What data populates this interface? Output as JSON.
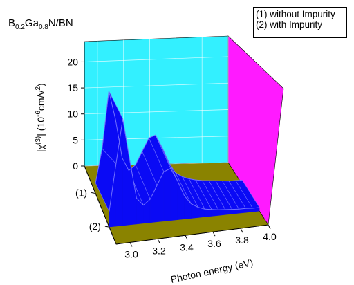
{
  "title": {
    "base": "B",
    "sub1": "0.2",
    "mid": "Ga",
    "sub2": "0.8",
    "tail": "N/BN"
  },
  "legend": {
    "entries": [
      "(1) without Impurity",
      "(2)  with Impurity"
    ]
  },
  "colors": {
    "back_wall": "#33f0ff",
    "side_wall": "#ff1aff",
    "floor": "#8a8300",
    "surface": "#0a0af5",
    "surface_edge": "#6f6fff"
  },
  "chart_data": {
    "type": "surface3d",
    "xlabel": "Photon energy (eV)",
    "ylabel_parts": {
      "pre": "|χ",
      "sup1": "(3)",
      "mid": "| (10",
      "sup2": "-6",
      "mid2": "cm/v",
      "sup3": "2",
      "post": ")"
    },
    "z_ticks": [
      "0",
      "5",
      "10",
      "15",
      "20"
    ],
    "zlim": [
      0,
      22
    ],
    "x_ticks": [
      "3.0",
      "3.2",
      "3.4",
      "3.6",
      "3.8",
      "4.0"
    ],
    "xlim": [
      2.9,
      4.0
    ],
    "depth_ticks": [
      "(1)",
      "(2)"
    ],
    "series": [
      {
        "name": "(1) without Impurity",
        "x": [
          2.9,
          2.95,
          3.0,
          3.05,
          3.1,
          3.15,
          3.2,
          3.25,
          3.3,
          3.35,
          3.4,
          3.45,
          3.5,
          3.55,
          3.6,
          3.65,
          3.7,
          3.75,
          3.8,
          3.85,
          3.9,
          3.95,
          4.0
        ],
        "values": [
          2.0,
          8.5,
          19.5,
          14.0,
          6.5,
          4.0,
          5.0,
          7.5,
          10.0,
          10.5,
          8.0,
          5.0,
          3.0,
          2.2,
          1.7,
          1.4,
          1.2,
          1.1,
          1.0,
          0.9,
          0.8,
          0.8,
          0.8
        ]
      },
      {
        "name": "(2)  with Impurity",
        "x": [
          2.9,
          2.95,
          3.0,
          3.05,
          3.1,
          3.15,
          3.2,
          3.25,
          3.3,
          3.35,
          3.4,
          3.45,
          3.5,
          3.55,
          3.6,
          3.65,
          3.7,
          3.75,
          3.8,
          3.85,
          3.9,
          3.95,
          4.0
        ],
        "values": [
          3.0,
          12.0,
          20.5,
          12.5,
          5.0,
          3.5,
          4.5,
          7.0,
          9.5,
          10.0,
          7.5,
          4.5,
          2.8,
          2.0,
          1.5,
          1.3,
          1.1,
          1.0,
          0.9,
          0.8,
          0.8,
          0.7,
          0.7
        ]
      }
    ],
    "grid": true
  }
}
